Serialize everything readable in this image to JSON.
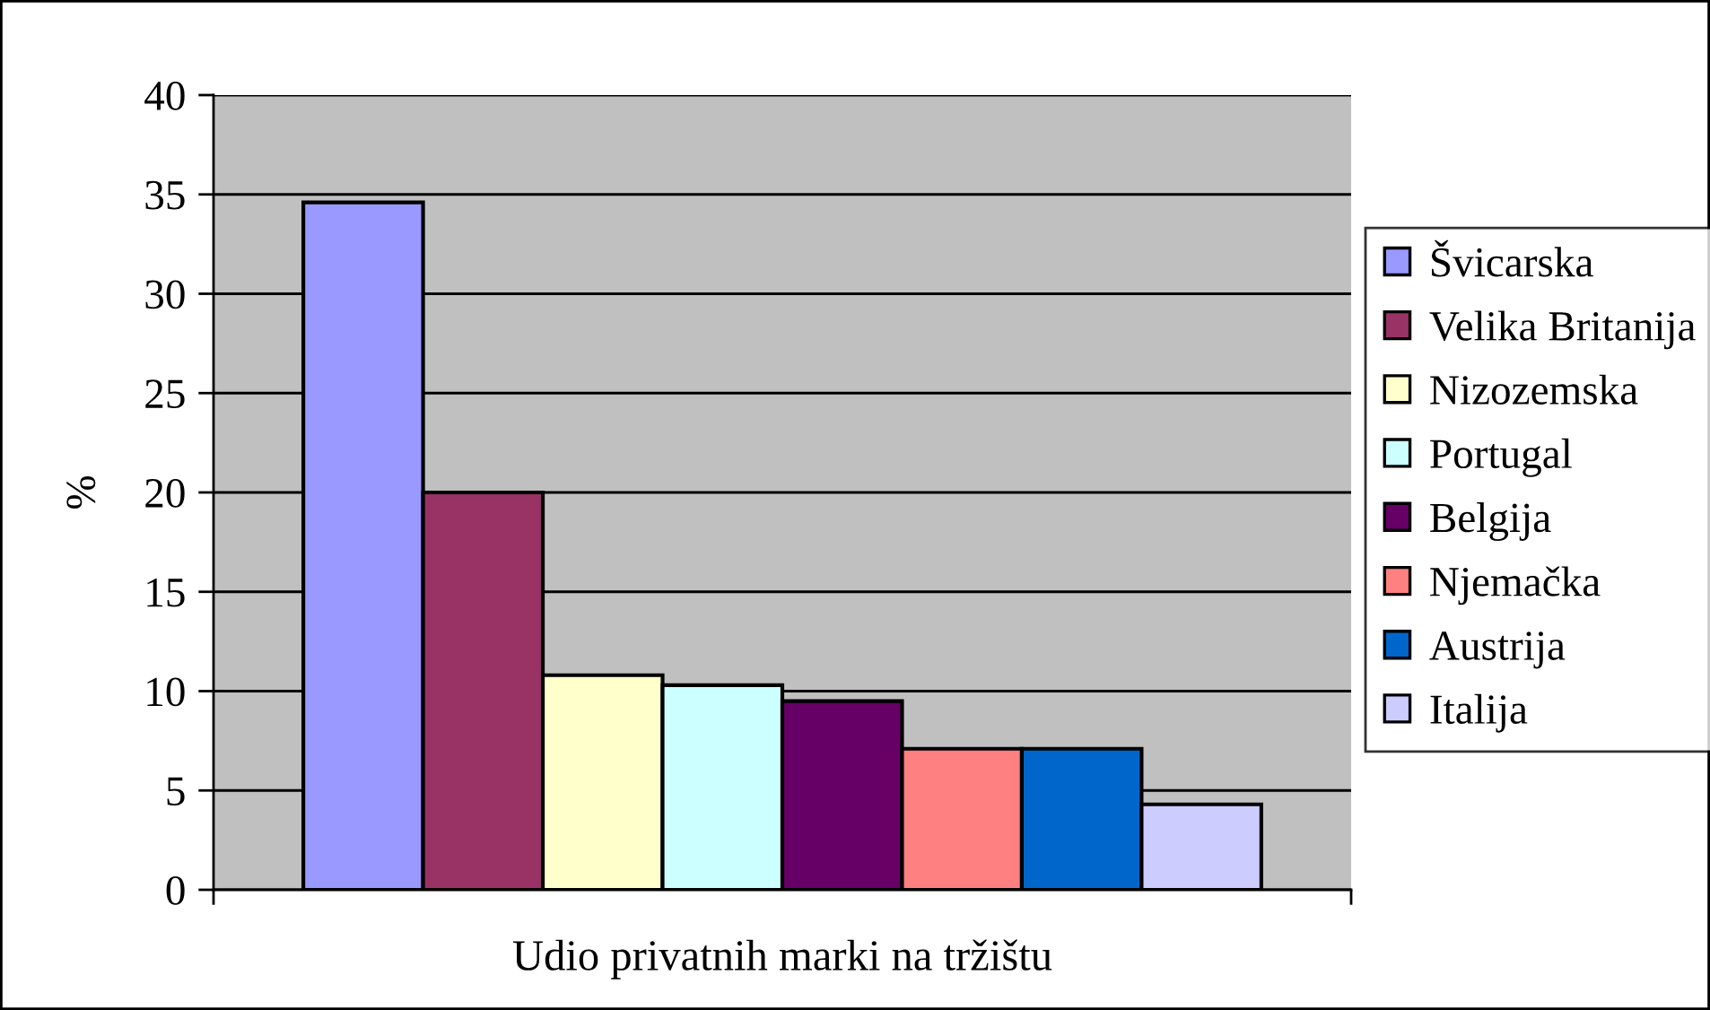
{
  "chart_data": {
    "type": "bar",
    "ylabel": "%",
    "categories": [
      "Udio privatnih marki na tržištu"
    ],
    "series": [
      {
        "name": "Švicarska",
        "color": "#9999ff",
        "values": [
          34.6
        ]
      },
      {
        "name": "Velika Britanija",
        "color": "#993366",
        "values": [
          20.0
        ]
      },
      {
        "name": "Nizozemska",
        "color": "#ffffcc",
        "values": [
          10.8
        ]
      },
      {
        "name": "Portugal",
        "color": "#ccffff",
        "values": [
          10.3
        ]
      },
      {
        "name": "Belgija",
        "color": "#660066",
        "values": [
          9.5
        ]
      },
      {
        "name": "Njemačka",
        "color": "#ff8080",
        "values": [
          7.1
        ]
      },
      {
        "name": "Austrija",
        "color": "#0066cc",
        "values": [
          7.1
        ]
      },
      {
        "name": "Italija",
        "color": "#ccccff",
        "values": [
          4.3
        ]
      }
    ],
    "ylim": [
      0,
      40
    ],
    "yticks": [
      0,
      5,
      10,
      15,
      20,
      25,
      30,
      35,
      40
    ],
    "grid": "y",
    "legend": "right"
  }
}
